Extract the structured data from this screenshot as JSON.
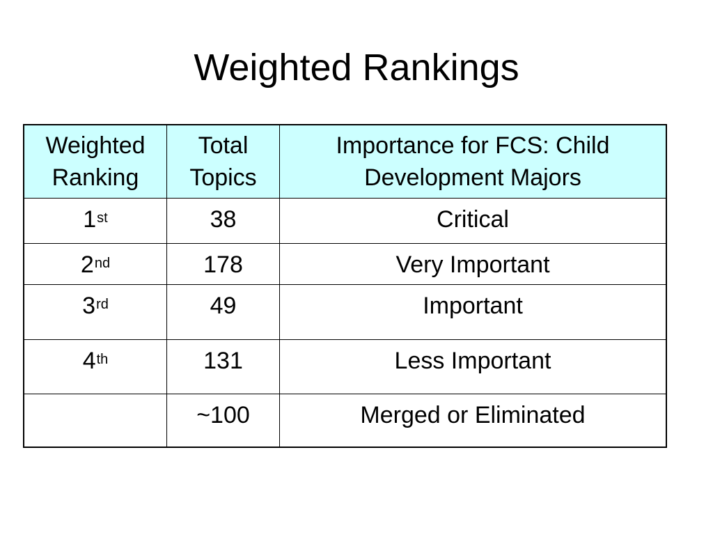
{
  "slide": {
    "title": "Weighted Rankings"
  },
  "table": {
    "headers": {
      "col1_line1": "Weighted",
      "col1_line2": "Ranking",
      "col2_line1": "Total",
      "col2_line2": "Topics",
      "col3_line1": "Importance for FCS: Child",
      "col3_line2": "Development Majors"
    },
    "rows": [
      {
        "rank": "1",
        "suffix": "st",
        "topics": "38",
        "importance": "Critical"
      },
      {
        "rank": "2",
        "suffix": "nd",
        "topics": "178",
        "importance": "Very Important"
      },
      {
        "rank": "3",
        "suffix": "rd",
        "topics": "49",
        "importance": "Important"
      },
      {
        "rank": "4",
        "suffix": "th",
        "topics": "131",
        "importance": "Less Important"
      },
      {
        "rank": "",
        "suffix": "",
        "topics": "~100",
        "importance": "Merged or Eliminated"
      }
    ]
  },
  "colors": {
    "header_bg": "#ccffff",
    "border": "#000000",
    "text": "#000000"
  }
}
